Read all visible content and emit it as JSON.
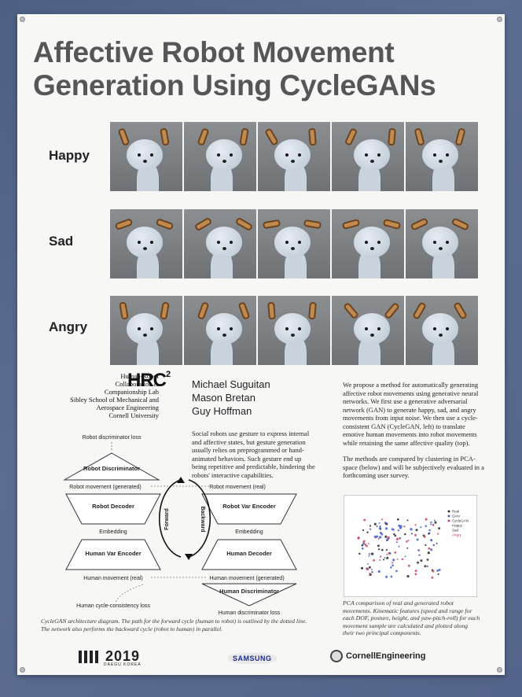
{
  "title_line1": "Affective Robot Movement",
  "title_line2": "Generation Using CycleGANs",
  "rows": [
    {
      "label": "Happy"
    },
    {
      "label": "Sad"
    },
    {
      "label": "Angry"
    }
  ],
  "lab": {
    "line1": "Human-Robot",
    "line2": "Collaboration &",
    "line3": "Companionship Lab",
    "line4": "Sibley School of Mechanical and",
    "line5": "Aerospace Engineering",
    "line6": "Cornell University",
    "logo": "HRC",
    "logo_sup": "2"
  },
  "authors": [
    "Michael Suguitan",
    "Mason Bretan",
    "Guy Hoffman"
  ],
  "intro": "Social robots use gesture to express internal and affective states, but gesture generation usually relies on preprogrammed or hand-animated behaviors. Such gesture end up being repetitive and predictable, hindering the robots' interactive capabilities.",
  "right_p1": "We propose a method for automatically generating affective robot movements using generative neural networks. We first use a generative adversarial network (GAN) to generate happy, sad, and angry movements from input noise. We then use a cycle-consistent GAN (CycleGAN, left) to translate emotive human movements into robot movements while retaining the same affective quality (top).",
  "right_p2": "The methods are compared by clustering in PCA-space (below) and will be subjectively evaluated in a forthcoming user survey.",
  "pca_legend": [
    "Real",
    "GAN",
    "CycleGAN",
    "Happy",
    "Sad",
    "Angry"
  ],
  "pca_caption": "PCA comparison of real and generated robot movements. Kinematic features (speed and range for each DOF, posture, height, and yaw-pitch-roll) for each movement sample are calculated and plotted along their two principal components.",
  "diagram": {
    "robot_disc_loss": "Robot discriminator loss",
    "robot_disc": "Robot Discriminator",
    "robot_gen": "Robot movement (generated)",
    "robot_real": "Robot movement (real)",
    "robot_decoder": "Robot Decoder",
    "robot_var_encoder": "Robot Var Encoder",
    "embedding_left": "Embedding",
    "embedding_right": "Embedding",
    "human_var_encoder": "Human Var Encoder",
    "human_decoder": "Human Decoder",
    "forward": "Forward",
    "backward": "Backward",
    "human_real": "Human movement (real)",
    "human_gen": "Human movement (generated)",
    "human_cycle_loss": "Human cycle-consistency loss",
    "human_disc": "Human Discriminator",
    "human_disc_loss": "Human discriminator loss"
  },
  "diag_caption": "CycleGAN architecture diagram. The path for the forward cycle (human to robot) is outlined by the dotted line. The network also performs the backward cycle (robot to human) in parallel.",
  "footer": {
    "hri_year": "2019",
    "hri_sub": "DAEGU KOREA",
    "samsung": "SAMSUNG",
    "cornell": "CornellEngineering"
  },
  "colors": {
    "title": "#555658",
    "ear": "#c0894d",
    "real": "#1b1b1b",
    "gan": "#3a56c8",
    "cyclegan": "#c83a5a"
  }
}
